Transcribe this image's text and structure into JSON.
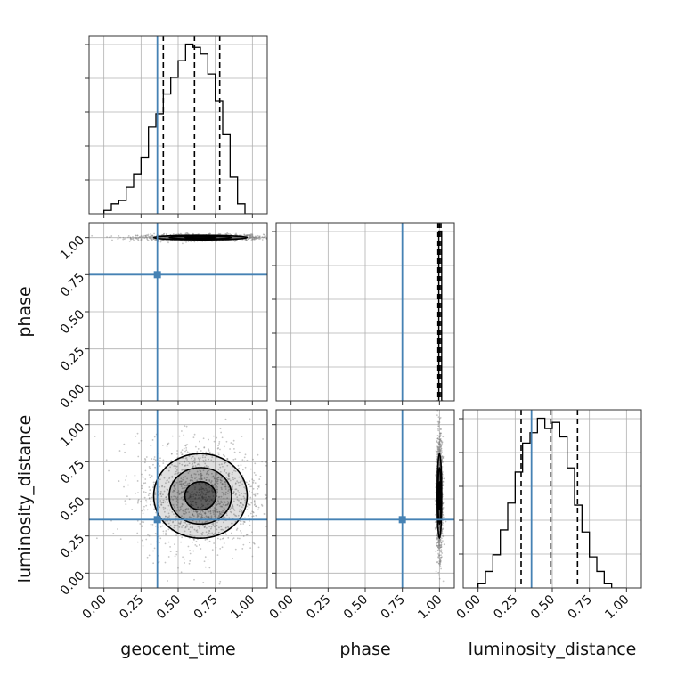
{
  "chart_data": {
    "type": "corner",
    "parameters": [
      "geocent_time",
      "phase",
      "luminosity_distance"
    ],
    "axis_range": [
      -0.1,
      1.1
    ],
    "ticks": [
      0.0,
      0.25,
      0.5,
      0.75,
      1.0
    ],
    "tick_labels": [
      "0.00",
      "0.25",
      "0.50",
      "0.75",
      "1.00"
    ],
    "grid": true,
    "colors": {
      "truth": "#4682b4",
      "hist": "#000000",
      "points": "#7f7f7f"
    },
    "truths": {
      "geocent_time": 0.36,
      "phase": 0.75,
      "luminosity_distance": 0.36
    },
    "quantiles": {
      "geocent_time": [
        0.4,
        0.61,
        0.78
      ],
      "phase": [
        0.99,
        1.0,
        1.01
      ],
      "luminosity_distance": [
        0.29,
        0.49,
        0.67
      ]
    },
    "histograms": {
      "geocent_time": {
        "bin_edges": [
          0.0,
          0.05,
          0.1,
          0.15,
          0.2,
          0.25,
          0.3,
          0.35,
          0.4,
          0.45,
          0.5,
          0.55,
          0.6,
          0.65,
          0.7,
          0.75,
          0.8,
          0.85,
          0.9,
          0.95,
          1.0
        ],
        "counts": [
          1,
          3,
          4,
          8,
          12,
          17,
          26,
          30,
          36,
          41,
          46,
          51,
          50,
          48,
          42,
          34,
          24,
          11,
          3,
          0
        ]
      },
      "phase": {
        "bin_edges": [
          0.975,
          0.985,
          0.995,
          1.005,
          1.015,
          1.025
        ],
        "counts": [
          0,
          0,
          100,
          100,
          0
        ]
      },
      "luminosity_distance": {
        "bin_edges": [
          0.0,
          0.05,
          0.1,
          0.15,
          0.2,
          0.25,
          0.3,
          0.35,
          0.4,
          0.45,
          0.5,
          0.55,
          0.6,
          0.65,
          0.7,
          0.75,
          0.8,
          0.85,
          0.9,
          0.95,
          1.0
        ],
        "counts": [
          2,
          8,
          16,
          28,
          41,
          56,
          70,
          75,
          82,
          77,
          80,
          73,
          58,
          40,
          27,
          15,
          8,
          2,
          0,
          0
        ]
      }
    },
    "contours_2d": [
      {
        "x": "geocent_time",
        "y": "phase",
        "center": [
          0.65,
          1.0
        ],
        "sigma": [
          0.21,
          0.01
        ],
        "levels": [
          0.5,
          1.0,
          1.5
        ]
      },
      {
        "x": "geocent_time",
        "y": "luminosity_distance",
        "center": [
          0.65,
          0.52
        ],
        "sigma": [
          0.21,
          0.19
        ],
        "levels": [
          0.5,
          1.0,
          1.5
        ]
      },
      {
        "x": "phase",
        "y": "luminosity_distance",
        "center": [
          1.0,
          0.52
        ],
        "sigma": [
          0.01,
          0.19
        ],
        "levels": [
          0.5,
          1.0,
          1.5
        ]
      }
    ]
  }
}
